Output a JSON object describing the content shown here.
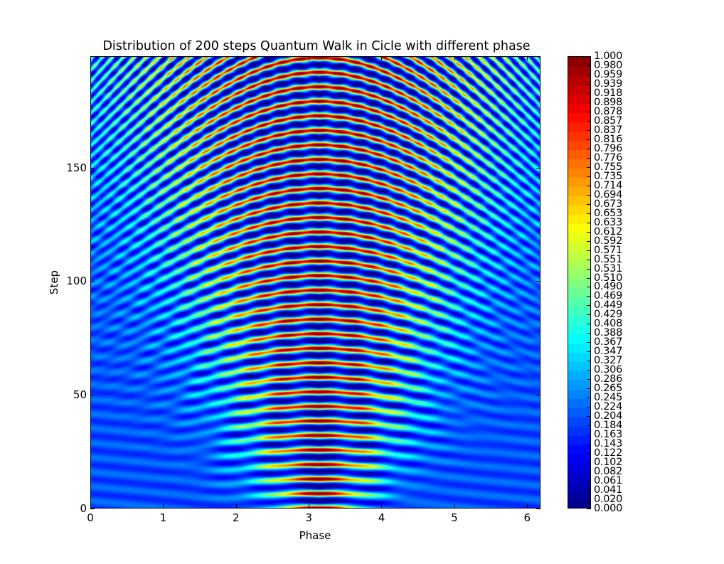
{
  "chart_data": {
    "type": "heatmap",
    "title": "Distribution of 200 steps Quantum Walk in Cicle with different phase",
    "xlabel": "Phase",
    "ylabel": "Step",
    "xlim": [
      0,
      6.1832
    ],
    "ylim": [
      0,
      199
    ],
    "xticks": [
      0,
      1,
      2,
      3,
      4,
      5,
      6
    ],
    "xtick_labels": [
      "0",
      "1",
      "2",
      "3",
      "4",
      "5",
      "6"
    ],
    "yticks": [
      0,
      50,
      100,
      150
    ],
    "ytick_labels": [
      "0",
      "50",
      "100",
      "150"
    ],
    "colormap": "jet",
    "colorbar": {
      "range": [
        0.0,
        1.0
      ],
      "levels": 49,
      "tick_labels": [
        "1.000",
        "0.980",
        "0.959",
        "0.939",
        "0.918",
        "0.898",
        "0.878",
        "0.857",
        "0.837",
        "0.816",
        "0.796",
        "0.776",
        "0.755",
        "0.735",
        "0.714",
        "0.694",
        "0.673",
        "0.653",
        "0.633",
        "0.612",
        "0.592",
        "0.571",
        "0.551",
        "0.531",
        "0.510",
        "0.490",
        "0.469",
        "0.449",
        "0.429",
        "0.408",
        "0.388",
        "0.367",
        "0.347",
        "0.327",
        "0.306",
        "0.286",
        "0.265",
        "0.245",
        "0.224",
        "0.204",
        "0.184",
        "0.163",
        "0.143",
        "0.122",
        "0.102",
        "0.082",
        "0.061",
        "0.041",
        "0.020",
        "0.000"
      ]
    },
    "description": "Horizontal interference bands per step; high values (yellow/red peaks) concentrated near phase = pi (~3.14), forming arch/chevron patterns that widen as step increases; edges near phase 0 and 2pi remain low (~0.2, blue).",
    "peak_phase": 3.14,
    "grid": false,
    "legend": "colorbar right"
  }
}
